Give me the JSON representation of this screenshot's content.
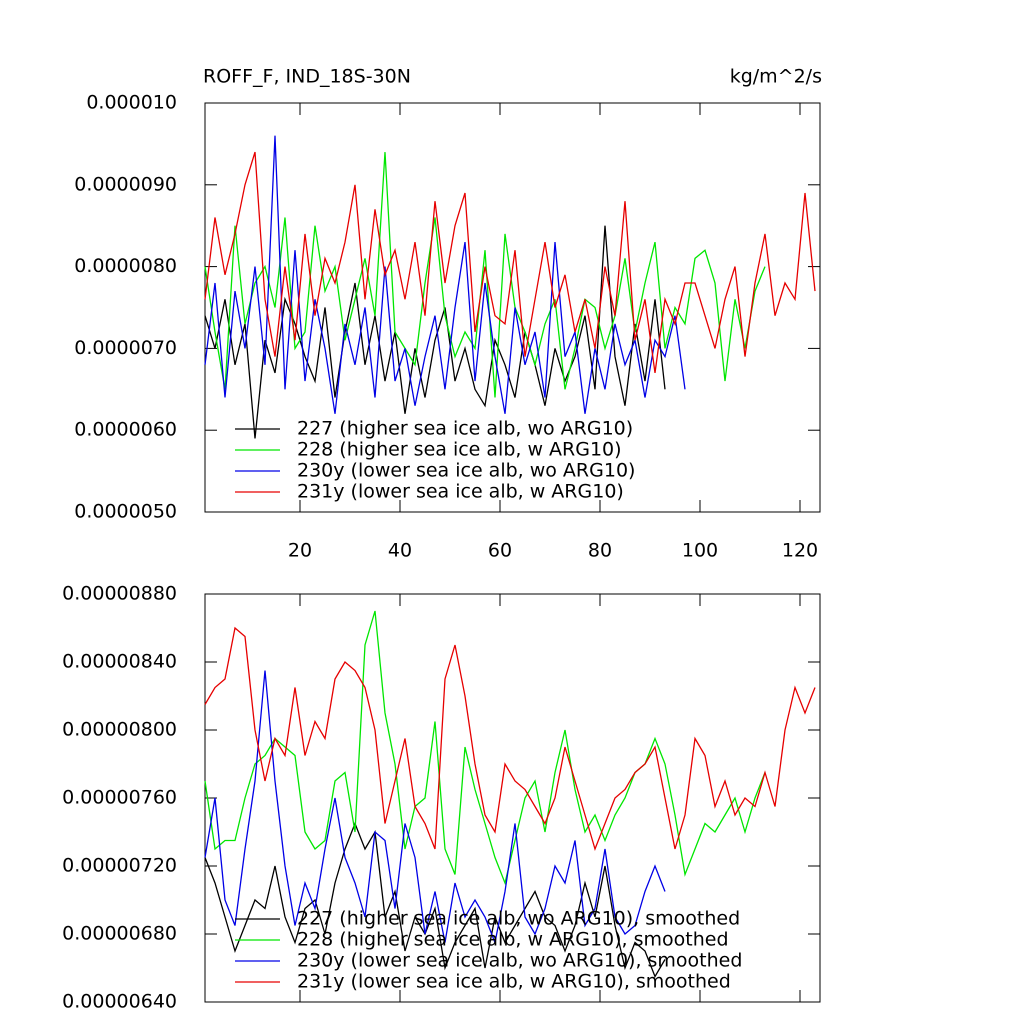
{
  "chart_data": [
    {
      "type": "line",
      "title": "ROFF_F, IND_18S-30N",
      "title_right": "kg/m^2/s",
      "x": [
        1,
        3,
        5,
        7,
        9,
        11,
        13,
        15,
        17,
        19,
        21,
        23,
        25,
        27,
        29,
        31,
        33,
        35,
        37,
        39,
        41,
        43,
        45,
        47,
        49,
        51,
        53,
        55,
        57,
        59,
        61,
        63,
        65,
        67,
        69,
        71,
        73,
        75,
        77,
        79,
        81,
        83,
        85,
        87,
        89,
        91,
        93,
        95,
        97,
        99,
        101,
        103,
        105,
        107,
        109,
        111,
        113,
        115,
        117,
        119,
        121,
        123
      ],
      "xlim": [
        1,
        124
      ],
      "xticks": [
        20,
        40,
        60,
        80,
        100,
        120
      ],
      "show_xtick_labels": true,
      "ylim": [
        5e-06,
        1e-05
      ],
      "yticks": [
        {
          "value": 5e-06,
          "label": "0.0000050"
        },
        {
          "value": 6e-06,
          "label": "0.0000060"
        },
        {
          "value": 7e-06,
          "label": "0.0000070"
        },
        {
          "value": 8e-06,
          "label": "0.0000080"
        },
        {
          "value": 9e-06,
          "label": "0.0000090"
        },
        {
          "value": 1e-05,
          "label": "0.000010"
        }
      ],
      "series": [
        {
          "name": "227 (higher sea ice alb, wo ARG10)",
          "color": "#000000",
          "values": [
            7.4e-06,
            7e-06,
            7.6e-06,
            6.8e-06,
            7.3e-06,
            5.9e-06,
            7.1e-06,
            6.7e-06,
            7.6e-06,
            7.3e-06,
            6.9e-06,
            6.6e-06,
            7.5e-06,
            6.4e-06,
            7.2e-06,
            7.8e-06,
            6.8e-06,
            7.4e-06,
            6.6e-06,
            7.2e-06,
            6.2e-06,
            7e-06,
            6.4e-06,
            7.1e-06,
            7.5e-06,
            6.6e-06,
            7e-06,
            6.5e-06,
            6.3e-06,
            7.1e-06,
            6.8e-06,
            6.4e-06,
            7.2e-06,
            6.8e-06,
            6.3e-06,
            7e-06,
            6.6e-06,
            6.9e-06,
            7.4e-06,
            6.5e-06,
            8.5e-06,
            6.9e-06,
            6.3e-06,
            7.3e-06,
            6.6e-06,
            7.6e-06,
            6.5e-06,
            null,
            null,
            null,
            null,
            null,
            null,
            null,
            null,
            null,
            null,
            null,
            null,
            null,
            null,
            null
          ]
        },
        {
          "name": "228 (higher sea ice alb, w ARG10)",
          "color": "#00e600",
          "values": [
            8e-06,
            7.2e-06,
            6.5e-06,
            8.5e-06,
            7.3e-06,
            7.8e-06,
            8e-06,
            7.5e-06,
            8.6e-06,
            7e-06,
            7.2e-06,
            8.5e-06,
            7.7e-06,
            8e-06,
            7.1e-06,
            7.6e-06,
            8.1e-06,
            7.4e-06,
            9.4e-06,
            7.2e-06,
            7e-06,
            6.8e-06,
            7.8e-06,
            8.6e-06,
            7.4e-06,
            6.9e-06,
            7.2e-06,
            7e-06,
            8.2e-06,
            6.4e-06,
            8.4e-06,
            7.5e-06,
            7.2e-06,
            6.8e-06,
            7.3e-06,
            7.6e-06,
            6.5e-06,
            7e-06,
            7.6e-06,
            7.5e-06,
            7e-06,
            7.4e-06,
            8.1e-06,
            7.2e-06,
            7.8e-06,
            8.3e-06,
            7e-06,
            7.5e-06,
            7.3e-06,
            8.1e-06,
            8.2e-06,
            7.8e-06,
            6.6e-06,
            7.6e-06,
            7e-06,
            7.7e-06,
            8e-06,
            null,
            null,
            null,
            null,
            null
          ]
        },
        {
          "name": "230y (lower sea ice alb, wo ARG10)",
          "color": "#0000e6",
          "values": [
            6.8e-06,
            7.8e-06,
            6.4e-06,
            7.7e-06,
            7e-06,
            8e-06,
            6.8e-06,
            9.6e-06,
            6.5e-06,
            8.2e-06,
            6.6e-06,
            7.6e-06,
            7e-06,
            6.2e-06,
            7.3e-06,
            6.8e-06,
            7.5e-06,
            6.4e-06,
            8e-06,
            6.6e-06,
            7e-06,
            6.3e-06,
            6.9e-06,
            7.4e-06,
            6.5e-06,
            7.5e-06,
            8.3e-06,
            6.6e-06,
            7.8e-06,
            6.9e-06,
            6.2e-06,
            7.5e-06,
            6.8e-06,
            7.2e-06,
            6.4e-06,
            8.3e-06,
            6.9e-06,
            7.2e-06,
            6.2e-06,
            7e-06,
            6.5e-06,
            7.3e-06,
            6.8e-06,
            7.1e-06,
            6.4e-06,
            7.1e-06,
            6.9e-06,
            7.4e-06,
            6.5e-06,
            null,
            null,
            null,
            null,
            null,
            null,
            null,
            null,
            null,
            null,
            null,
            null,
            null
          ]
        },
        {
          "name": "231y (lower sea ice alb, w ARG10)",
          "color": "#e60000",
          "values": [
            7.6e-06,
            8.6e-06,
            7.9e-06,
            8.4e-06,
            9e-06,
            9.4e-06,
            7.6e-06,
            6.9e-06,
            8e-06,
            7.1e-06,
            8.4e-06,
            7.4e-06,
            8.1e-06,
            7.8e-06,
            8.3e-06,
            9e-06,
            7.6e-06,
            8.7e-06,
            7.9e-06,
            8.2e-06,
            7.6e-06,
            8.3e-06,
            7.4e-06,
            8.8e-06,
            7.8e-06,
            8.5e-06,
            8.9e-06,
            7.2e-06,
            8e-06,
            7.4e-06,
            7.3e-06,
            8.2e-06,
            6.9e-06,
            7.6e-06,
            8.3e-06,
            7.5e-06,
            7.9e-06,
            7.2e-06,
            7.6e-06,
            7e-06,
            8e-06,
            7.4e-06,
            8.8e-06,
            7.1e-06,
            7.6e-06,
            6.7e-06,
            7.6e-06,
            7.3e-06,
            7.8e-06,
            7.8e-06,
            7.4e-06,
            7e-06,
            7.6e-06,
            8e-06,
            6.9e-06,
            7.8e-06,
            8.4e-06,
            7.4e-06,
            7.8e-06,
            7.6e-06,
            8.9e-06,
            7.7e-06
          ]
        }
      ]
    },
    {
      "type": "line",
      "x": [
        1,
        3,
        5,
        7,
        9,
        11,
        13,
        15,
        17,
        19,
        21,
        23,
        25,
        27,
        29,
        31,
        33,
        35,
        37,
        39,
        41,
        43,
        45,
        47,
        49,
        51,
        53,
        55,
        57,
        59,
        61,
        63,
        65,
        67,
        69,
        71,
        73,
        75,
        77,
        79,
        81,
        83,
        85,
        87,
        89,
        91,
        93,
        95,
        97,
        99,
        101,
        103,
        105,
        107,
        109,
        111,
        113,
        115,
        117,
        119,
        121,
        123
      ],
      "xlim": [
        1,
        124
      ],
      "xticks": [
        20,
        40,
        60,
        80,
        100,
        120
      ],
      "show_xtick_labels": false,
      "ylim": [
        6.4e-06,
        8.8e-06
      ],
      "yticks": [
        {
          "value": 6.4e-06,
          "label": "0.00000640"
        },
        {
          "value": 6.8e-06,
          "label": "0.00000680"
        },
        {
          "value": 7.2e-06,
          "label": "0.00000720"
        },
        {
          "value": 7.6e-06,
          "label": "0.00000760"
        },
        {
          "value": 8e-06,
          "label": "0.00000800"
        },
        {
          "value": 8.4e-06,
          "label": "0.00000840"
        },
        {
          "value": 8.8e-06,
          "label": "0.00000880"
        }
      ],
      "series": [
        {
          "name": "227 (higher sea ice alb, wo ARG10), smoothed",
          "color": "#000000",
          "values": [
            7.25e-06,
            7.1e-06,
            6.9e-06,
            6.7e-06,
            6.85e-06,
            7e-06,
            6.95e-06,
            7.2e-06,
            6.9e-06,
            6.75e-06,
            6.95e-06,
            7e-06,
            6.8e-06,
            7.1e-06,
            7.3e-06,
            7.45e-06,
            7.3e-06,
            7.4e-06,
            6.9e-06,
            7.05e-06,
            6.7e-06,
            6.9e-06,
            6.8e-06,
            6.95e-06,
            6.6e-06,
            6.75e-06,
            6.85e-06,
            6.95e-06,
            6.6e-06,
            6.9e-06,
            6.75e-06,
            6.85e-06,
            6.95e-06,
            7.05e-06,
            6.9e-06,
            6.85e-06,
            6.7e-06,
            6.85e-06,
            7.1e-06,
            6.9e-06,
            7.2e-06,
            6.85e-06,
            6.6e-06,
            6.75e-06,
            6.7e-06,
            6.55e-06,
            6.65e-06,
            null,
            null,
            null,
            null,
            null,
            null,
            null,
            null,
            null,
            null,
            null,
            null,
            null,
            null,
            null
          ]
        },
        {
          "name": "228 (higher sea ice alb, w ARG10), smoothed",
          "color": "#00e600",
          "values": [
            7.7e-06,
            7.3e-06,
            7.35e-06,
            7.35e-06,
            7.6e-06,
            7.8e-06,
            7.85e-06,
            7.95e-06,
            7.9e-06,
            7.85e-06,
            7.4e-06,
            7.3e-06,
            7.35e-06,
            7.7e-06,
            7.75e-06,
            7.4e-06,
            8.5e-06,
            8.7e-06,
            8.1e-06,
            7.8e-06,
            7.3e-06,
            7.55e-06,
            7.6e-06,
            8.05e-06,
            7.3e-06,
            7.15e-06,
            7.9e-06,
            7.65e-06,
            7.45e-06,
            7.25e-06,
            7.1e-06,
            7.35e-06,
            7.6e-06,
            7.7e-06,
            7.4e-06,
            7.75e-06,
            8e-06,
            7.65e-06,
            7.4e-06,
            7.5e-06,
            7.35e-06,
            7.5e-06,
            7.6e-06,
            7.75e-06,
            7.8e-06,
            7.95e-06,
            7.8e-06,
            7.5e-06,
            7.15e-06,
            7.3e-06,
            7.45e-06,
            7.4e-06,
            7.5e-06,
            7.6e-06,
            7.4e-06,
            7.6e-06,
            7.75e-06,
            null,
            null,
            null,
            null,
            null
          ]
        },
        {
          "name": "230y (lower sea ice alb, wo ARG10), smoothed",
          "color": "#0000e6",
          "values": [
            7.25e-06,
            7.6e-06,
            7e-06,
            6.85e-06,
            7.3e-06,
            7.7e-06,
            8.35e-06,
            7.7e-06,
            7.2e-06,
            6.85e-06,
            7.1e-06,
            6.95e-06,
            7.3e-06,
            7.6e-06,
            7.25e-06,
            7.1e-06,
            6.9e-06,
            7.4e-06,
            7.35e-06,
            6.95e-06,
            7.45e-06,
            7.25e-06,
            6.8e-06,
            7.05e-06,
            6.75e-06,
            7.1e-06,
            6.9e-06,
            7e-06,
            6.9e-06,
            6.75e-06,
            7.05e-06,
            7.45e-06,
            6.9e-06,
            6.8e-06,
            6.95e-06,
            7.2e-06,
            7.1e-06,
            7.35e-06,
            6.85e-06,
            6.95e-06,
            7.3e-06,
            6.9e-06,
            6.8e-06,
            6.85e-06,
            7.05e-06,
            7.2e-06,
            7.05e-06,
            null,
            null,
            null,
            null,
            null,
            null,
            null,
            null,
            null,
            null,
            null,
            null,
            null,
            null,
            null
          ]
        },
        {
          "name": "231y (lower sea ice alb, w ARG10), smoothed",
          "color": "#e60000",
          "values": [
            8.15e-06,
            8.25e-06,
            8.3e-06,
            8.6e-06,
            8.55e-06,
            8e-06,
            7.7e-06,
            7.95e-06,
            7.85e-06,
            8.25e-06,
            7.85e-06,
            8.05e-06,
            7.95e-06,
            8.3e-06,
            8.4e-06,
            8.35e-06,
            8.25e-06,
            8e-06,
            7.45e-06,
            7.7e-06,
            7.95e-06,
            7.55e-06,
            7.45e-06,
            7.3e-06,
            8.3e-06,
            8.5e-06,
            8.2e-06,
            7.8e-06,
            7.5e-06,
            7.4e-06,
            7.8e-06,
            7.7e-06,
            7.65e-06,
            7.55e-06,
            7.45e-06,
            7.6e-06,
            7.9e-06,
            7.7e-06,
            7.5e-06,
            7.3e-06,
            7.45e-06,
            7.6e-06,
            7.65e-06,
            7.75e-06,
            7.8e-06,
            7.9e-06,
            7.6e-06,
            7.3e-06,
            7.5e-06,
            7.95e-06,
            7.85e-06,
            7.55e-06,
            7.7e-06,
            7.5e-06,
            7.6e-06,
            7.55e-06,
            7.75e-06,
            7.55e-06,
            8e-06,
            8.25e-06,
            8.1e-06,
            8.25e-06
          ]
        }
      ]
    }
  ]
}
